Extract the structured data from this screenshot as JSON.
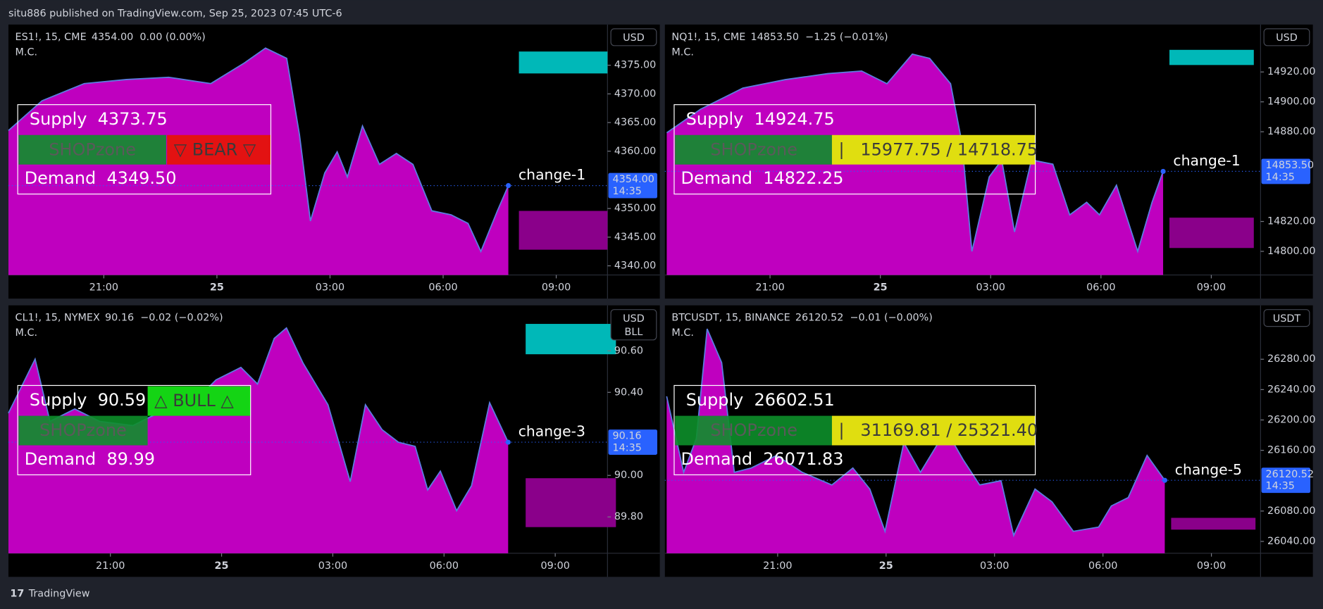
{
  "header": "situ886 published on TradingView.com, Sep 25, 2023 07:45 UTC-6",
  "footer": "TradingView",
  "chart_data": [
    {
      "type": "area",
      "symbol": "ES1!, 15, CME",
      "price_info": "4354.00  0.00 (0.00%)",
      "indicator": "M.C.",
      "currency": [
        "USD"
      ],
      "color": "#e000e0",
      "line_color": "#5b7de0",
      "grid": false,
      "x": [
        18.47,
        19.36,
        20.48,
        21.6,
        22.72,
        23.84,
        24.73,
        25.29,
        25.85,
        26.19,
        26.48,
        26.86,
        27.19,
        27.46,
        27.86,
        28.31,
        28.76,
        29.2,
        29.7,
        30.21,
        30.66,
        31.0,
        31.44,
        31.73
      ],
      "values": [
        4363.6,
        4368.8,
        4371.8,
        4372.5,
        4372.9,
        4371.8,
        4375.4,
        4378.0,
        4376.2,
        4362.9,
        4347.8,
        4356.2,
        4359.9,
        4355.5,
        4364.4,
        4357.7,
        4359.6,
        4357.7,
        4349.6,
        4348.9,
        4347.4,
        4342.5,
        4349.6,
        4354.0
      ],
      "xlim": [
        18.47,
        34.36
      ],
      "ylim": [
        4338.4,
        4382.1
      ],
      "xticks": [
        {
          "value": 21,
          "label": "21:00"
        },
        {
          "value": 24,
          "label": "25"
        },
        {
          "value": 27,
          "label": "03:00"
        },
        {
          "value": 30,
          "label": "06:00"
        },
        {
          "value": 33,
          "label": "09:00"
        }
      ],
      "yticks": [
        {
          "value": 4340,
          "label": "4340.00"
        },
        {
          "value": 4345,
          "label": "4345.00"
        },
        {
          "value": 4350,
          "label": "4350.00"
        },
        {
          "value": 4360,
          "label": "4360.00"
        },
        {
          "value": 4365,
          "label": "4365.00"
        },
        {
          "value": 4370,
          "label": "4370.00"
        },
        {
          "value": 4375,
          "label": "4375.00"
        }
      ],
      "price_label": "4354.00",
      "countdown": "14:35",
      "annotation": "change-1",
      "zone": {
        "supply": "Supply  4373.75",
        "name": "SHOPzone",
        "demand": "Demand  4349.50",
        "signal": "▽ BEAR ▽",
        "signal_row": 2,
        "signal_color": "#e31212"
      }
    },
    {
      "type": "area",
      "symbol": "NQ1!, 15, CME",
      "price_info": "14853.50  −1.25 (−0.01%)",
      "indicator": "M.C.",
      "currency": [
        "USD"
      ],
      "color": "#e000e0",
      "line_color": "#5b7de0",
      "grid": false,
      "x": [
        18.19,
        19.11,
        20.26,
        21.42,
        22.57,
        23.49,
        24.18,
        24.87,
        25.34,
        25.91,
        26.22,
        26.49,
        26.96,
        27.3,
        27.65,
        28.11,
        28.69,
        29.15,
        29.61,
        29.96,
        30.42,
        31.0,
        31.39,
        31.69
      ],
      "values": [
        14879.3,
        14895.1,
        14909.2,
        14914.9,
        14918.9,
        14920.6,
        14912.1,
        14931.9,
        14929.1,
        14912.1,
        14872.5,
        14800.0,
        14849.8,
        14861.1,
        14813.0,
        14861.1,
        14858.3,
        14824.4,
        14832.8,
        14824.4,
        14844.2,
        14800.0,
        14832.8,
        14853.5
      ],
      "xlim": [
        18.14,
        34.34
      ],
      "ylim": [
        14784.2,
        14951.7
      ],
      "xticks": [
        {
          "value": 21,
          "label": "21:00"
        },
        {
          "value": 24,
          "label": "25"
        },
        {
          "value": 27,
          "label": "03:00"
        },
        {
          "value": 30,
          "label": "06:00"
        },
        {
          "value": 33,
          "label": "09:00"
        }
      ],
      "yticks": [
        {
          "value": 14800,
          "label": "14800.00"
        },
        {
          "value": 14820,
          "label": "14820.00"
        },
        {
          "value": 14880,
          "label": "14880.00"
        },
        {
          "value": 14900,
          "label": "14900.00"
        },
        {
          "value": 14920,
          "label": "14920.00"
        }
      ],
      "price_label": "14853.50",
      "countdown": "14:35",
      "annotation": "change-1",
      "zone": {
        "supply": "Supply  14924.75",
        "name": "SHOPzone",
        "demand": "Demand  14822.25",
        "signal": "|   15977.75 / 14718.75",
        "signal_row": 2,
        "signal_color": "#e0de10"
      }
    },
    {
      "type": "area",
      "symbol": "CL1!, 15, NYMEX",
      "price_info": "90.16  −0.02 (−0.02%)",
      "indicator": "M.C.",
      "currency": [
        "USD",
        "BLL"
      ],
      "color": "#e000e0",
      "line_color": "#5b7de0",
      "grid": false,
      "x": [
        18.25,
        18.97,
        19.37,
        20.04,
        20.71,
        21.61,
        22.28,
        23.07,
        23.85,
        24.52,
        24.97,
        25.42,
        25.75,
        26.2,
        26.87,
        27.47,
        27.88,
        28.33,
        28.77,
        29.22,
        29.56,
        29.9,
        30.34,
        30.74,
        31.23,
        31.73
      ],
      "values": [
        90.3,
        90.56,
        90.26,
        90.32,
        90.26,
        90.24,
        90.3,
        90.32,
        90.46,
        90.52,
        90.44,
        90.66,
        90.71,
        90.54,
        90.34,
        89.97,
        90.34,
        90.22,
        90.16,
        90.14,
        89.93,
        90.02,
        89.83,
        89.95,
        90.35,
        90.16
      ],
      "xlim": [
        18.25,
        34.41
      ],
      "ylim": [
        89.625,
        90.819
      ],
      "xticks": [
        {
          "value": 21,
          "label": "21:00"
        },
        {
          "value": 24,
          "label": "25"
        },
        {
          "value": 27,
          "label": "03:00"
        },
        {
          "value": 30,
          "label": "06:00"
        },
        {
          "value": 33,
          "label": "09:00"
        }
      ],
      "yticks": [
        {
          "value": 89.8,
          "label": "89.80"
        },
        {
          "value": 90.0,
          "label": "90.00"
        },
        {
          "value": 90.4,
          "label": "90.40"
        },
        {
          "value": 90.6,
          "label": "90.60"
        }
      ],
      "price_label": "90.16",
      "countdown": "14:35",
      "annotation": "change-3",
      "zone": {
        "supply": "Supply  90.59",
        "name": "SHOPzone",
        "demand": "Demand  89.99",
        "signal": "△ BULL △",
        "signal_row": 1,
        "signal_color": "#14d414"
      }
    },
    {
      "type": "area",
      "symbol": "BTCUSDT, 15, BINANCE",
      "price_info": "26120.52  −0.01 (−0.00%)",
      "indicator": "M.C.",
      "currency": [
        "USDT"
      ],
      "color": "#e000e0",
      "line_color": "#5b7de0",
      "grid": false,
      "x": [
        17.93,
        18.4,
        18.75,
        19.05,
        19.45,
        19.8,
        20.27,
        20.97,
        21.68,
        22.5,
        23.08,
        23.55,
        23.97,
        24.49,
        24.95,
        25.66,
        26.13,
        26.59,
        27.18,
        27.53,
        28.12,
        28.59,
        29.18,
        29.88,
        30.23,
        30.7,
        31.22,
        31.71
      ],
      "values": [
        26231.1,
        26131.1,
        26175.6,
        26320.0,
        26275.6,
        26131.1,
        26136.7,
        26153.3,
        26131.1,
        26114.4,
        26136.7,
        26108.9,
        26053.3,
        26170.0,
        26131.1,
        26186.7,
        26147.8,
        26114.4,
        26120.0,
        26047.8,
        26108.9,
        26092.2,
        26053.3,
        26058.9,
        26086.7,
        26097.8,
        26153.3,
        26120.52
      ],
      "xlim": [
        17.88,
        34.36
      ],
      "ylim": [
        26024.4,
        26351
      ],
      "xticks": [
        {
          "value": 21,
          "label": "21:00"
        },
        {
          "value": 24,
          "label": "25"
        },
        {
          "value": 27,
          "label": "03:00"
        },
        {
          "value": 30,
          "label": "06:00"
        },
        {
          "value": 33,
          "label": "09:00"
        }
      ],
      "yticks": [
        {
          "value": 26040,
          "label": "26040.00"
        },
        {
          "value": 26080,
          "label": "26080.00"
        },
        {
          "value": 26160,
          "label": "26160.00"
        },
        {
          "value": 26200,
          "label": "26200.00"
        },
        {
          "value": 26240,
          "label": "26240.00"
        },
        {
          "value": 26280,
          "label": "26280.00"
        }
      ],
      "price_label": "26120.52",
      "countdown": "14:35",
      "annotation": "change-5",
      "zone": {
        "supply": "Supply  26602.51",
        "name": "SHOPzone",
        "demand": "Demand  26071.83",
        "signal": "|   31169.81 / 25321.40",
        "signal_row": 2,
        "signal_color": "#e0de10"
      }
    }
  ]
}
